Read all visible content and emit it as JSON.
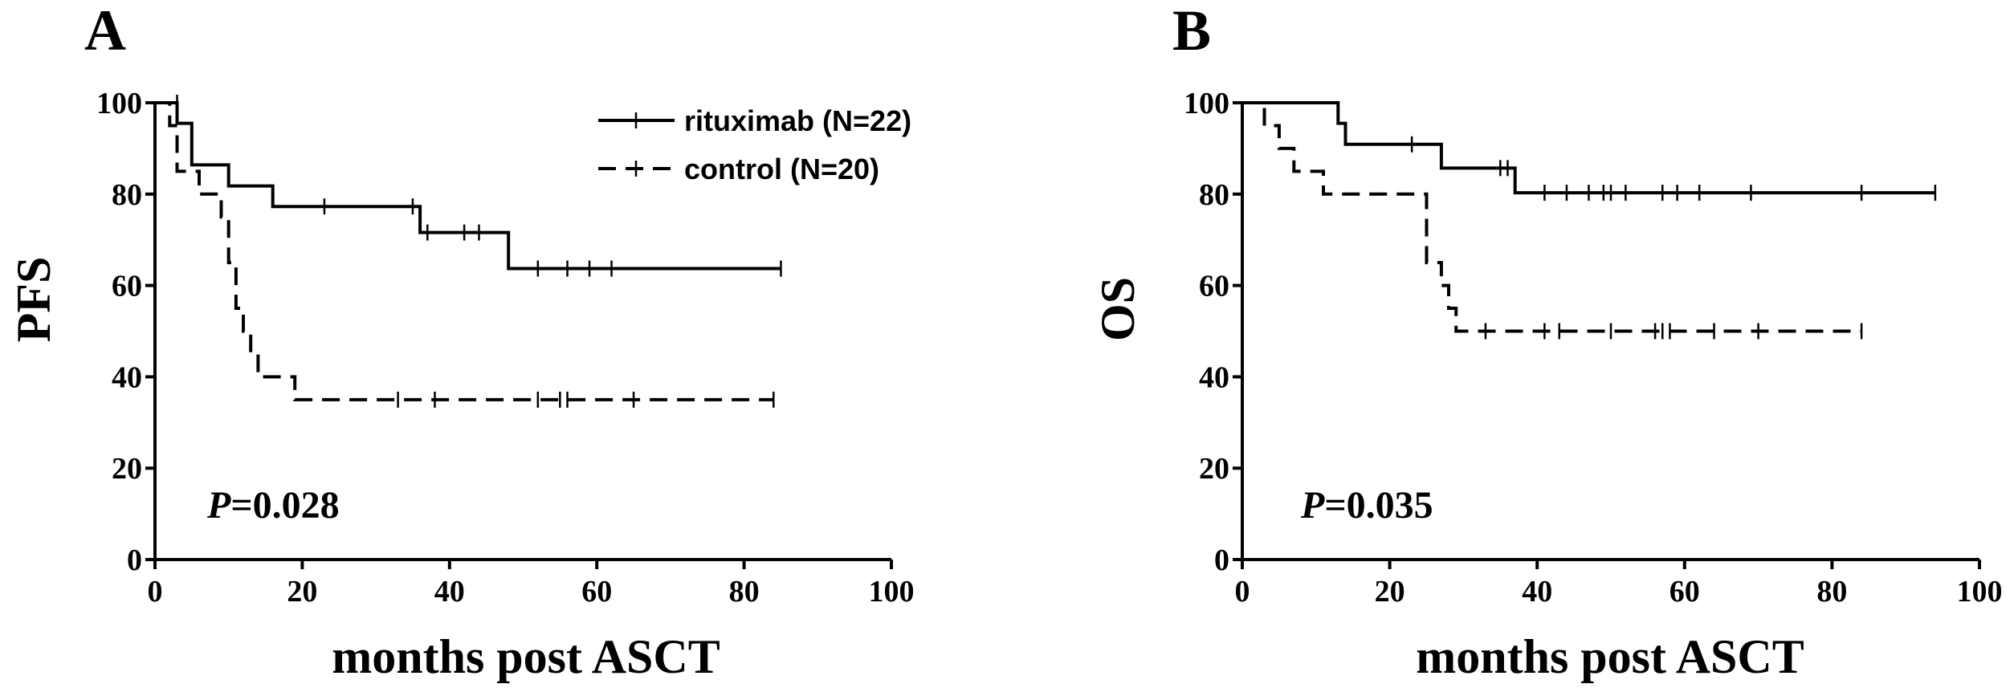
{
  "chart_data": [
    {
      "type": "line",
      "panel": "A",
      "ylabel": "PFS",
      "xlabel": "months post ASCT",
      "xlim": [
        0,
        100
      ],
      "ylim": [
        0,
        100
      ],
      "xticks": [
        "0",
        "20",
        "40",
        "60",
        "80",
        "100"
      ],
      "yticks": [
        "0",
        "20",
        "40",
        "60",
        "80",
        "100"
      ],
      "annotation": {
        "italic": "P",
        "rest": "=0.028"
      },
      "legend": {
        "placement": "top-right",
        "entries": [
          {
            "label": "rituximab (N=22)",
            "style": "solid"
          },
          {
            "label": "control (N=20)",
            "style": "dashed"
          }
        ]
      },
      "series": [
        {
          "style": "solid",
          "x": [
            0,
            3,
            3,
            5,
            5,
            10,
            10,
            16,
            16,
            36,
            36,
            48,
            48,
            85
          ],
          "y": [
            100,
            100,
            95.5,
            95.5,
            86.4,
            86.4,
            81.8,
            81.8,
            77.3,
            77.3,
            71.6,
            71.6,
            63.7,
            63.7
          ],
          "censor_x": [
            3,
            23,
            35,
            37,
            42,
            44,
            52,
            56,
            59,
            62,
            85
          ],
          "censor_y": [
            100,
            77.3,
            77.3,
            71.6,
            71.6,
            71.6,
            63.7,
            63.7,
            63.7,
            63.7,
            63.7
          ]
        },
        {
          "style": "dashed",
          "x": [
            0,
            2,
            2,
            3,
            3,
            6,
            6,
            9,
            9,
            10,
            10,
            11,
            11,
            12,
            12,
            13,
            13,
            14,
            14,
            16,
            16,
            19,
            19,
            84
          ],
          "y": [
            100,
            100,
            95,
            95,
            85,
            85,
            80,
            80,
            75,
            75,
            65,
            65,
            55,
            55,
            50,
            50,
            45,
            45,
            40,
            40,
            40,
            40,
            35,
            35
          ],
          "censor_x": [
            33,
            38,
            52,
            55,
            56,
            65,
            84
          ],
          "censor_y": [
            35,
            35,
            35,
            35,
            35,
            35,
            35
          ]
        }
      ]
    },
    {
      "type": "line",
      "panel": "B",
      "ylabel": "OS",
      "xlabel": "months post ASCT",
      "xlim": [
        0,
        100
      ],
      "ylim": [
        0,
        100
      ],
      "xticks": [
        "0",
        "20",
        "40",
        "60",
        "80",
        "100"
      ],
      "yticks": [
        "0",
        "20",
        "40",
        "60",
        "80",
        "100"
      ],
      "annotation": {
        "italic": "P",
        "rest": "=0.035"
      },
      "series": [
        {
          "style": "solid",
          "x": [
            0,
            13,
            13,
            14,
            14,
            27,
            27,
            37,
            37,
            94
          ],
          "y": [
            100,
            100,
            95.5,
            95.5,
            90.9,
            90.9,
            85.7,
            85.7,
            80.3,
            80.3
          ],
          "censor_x": [
            23,
            35,
            36,
            41,
            44,
            47,
            49,
            50,
            52,
            57,
            59,
            62,
            69,
            84,
            94
          ],
          "censor_y": [
            90.9,
            85.7,
            85.7,
            80.3,
            80.3,
            80.3,
            80.3,
            80.3,
            80.3,
            80.3,
            80.3,
            80.3,
            80.3,
            80.3,
            80.3
          ]
        },
        {
          "style": "dashed",
          "x": [
            0,
            3,
            3,
            5,
            5,
            7,
            7,
            11,
            11,
            25,
            25,
            27,
            27,
            28,
            28,
            29,
            29,
            30,
            30,
            84
          ],
          "y": [
            100,
            100,
            95,
            95,
            90,
            90,
            85,
            85,
            80,
            80,
            65,
            65,
            60,
            60,
            55,
            55,
            50,
            50,
            50,
            50
          ],
          "censor_x": [
            33,
            41,
            43,
            50,
            56,
            57,
            58,
            64,
            70,
            84
          ],
          "censor_y": [
            50,
            50,
            50,
            50,
            50,
            50,
            50,
            50,
            50,
            50
          ]
        }
      ]
    }
  ]
}
